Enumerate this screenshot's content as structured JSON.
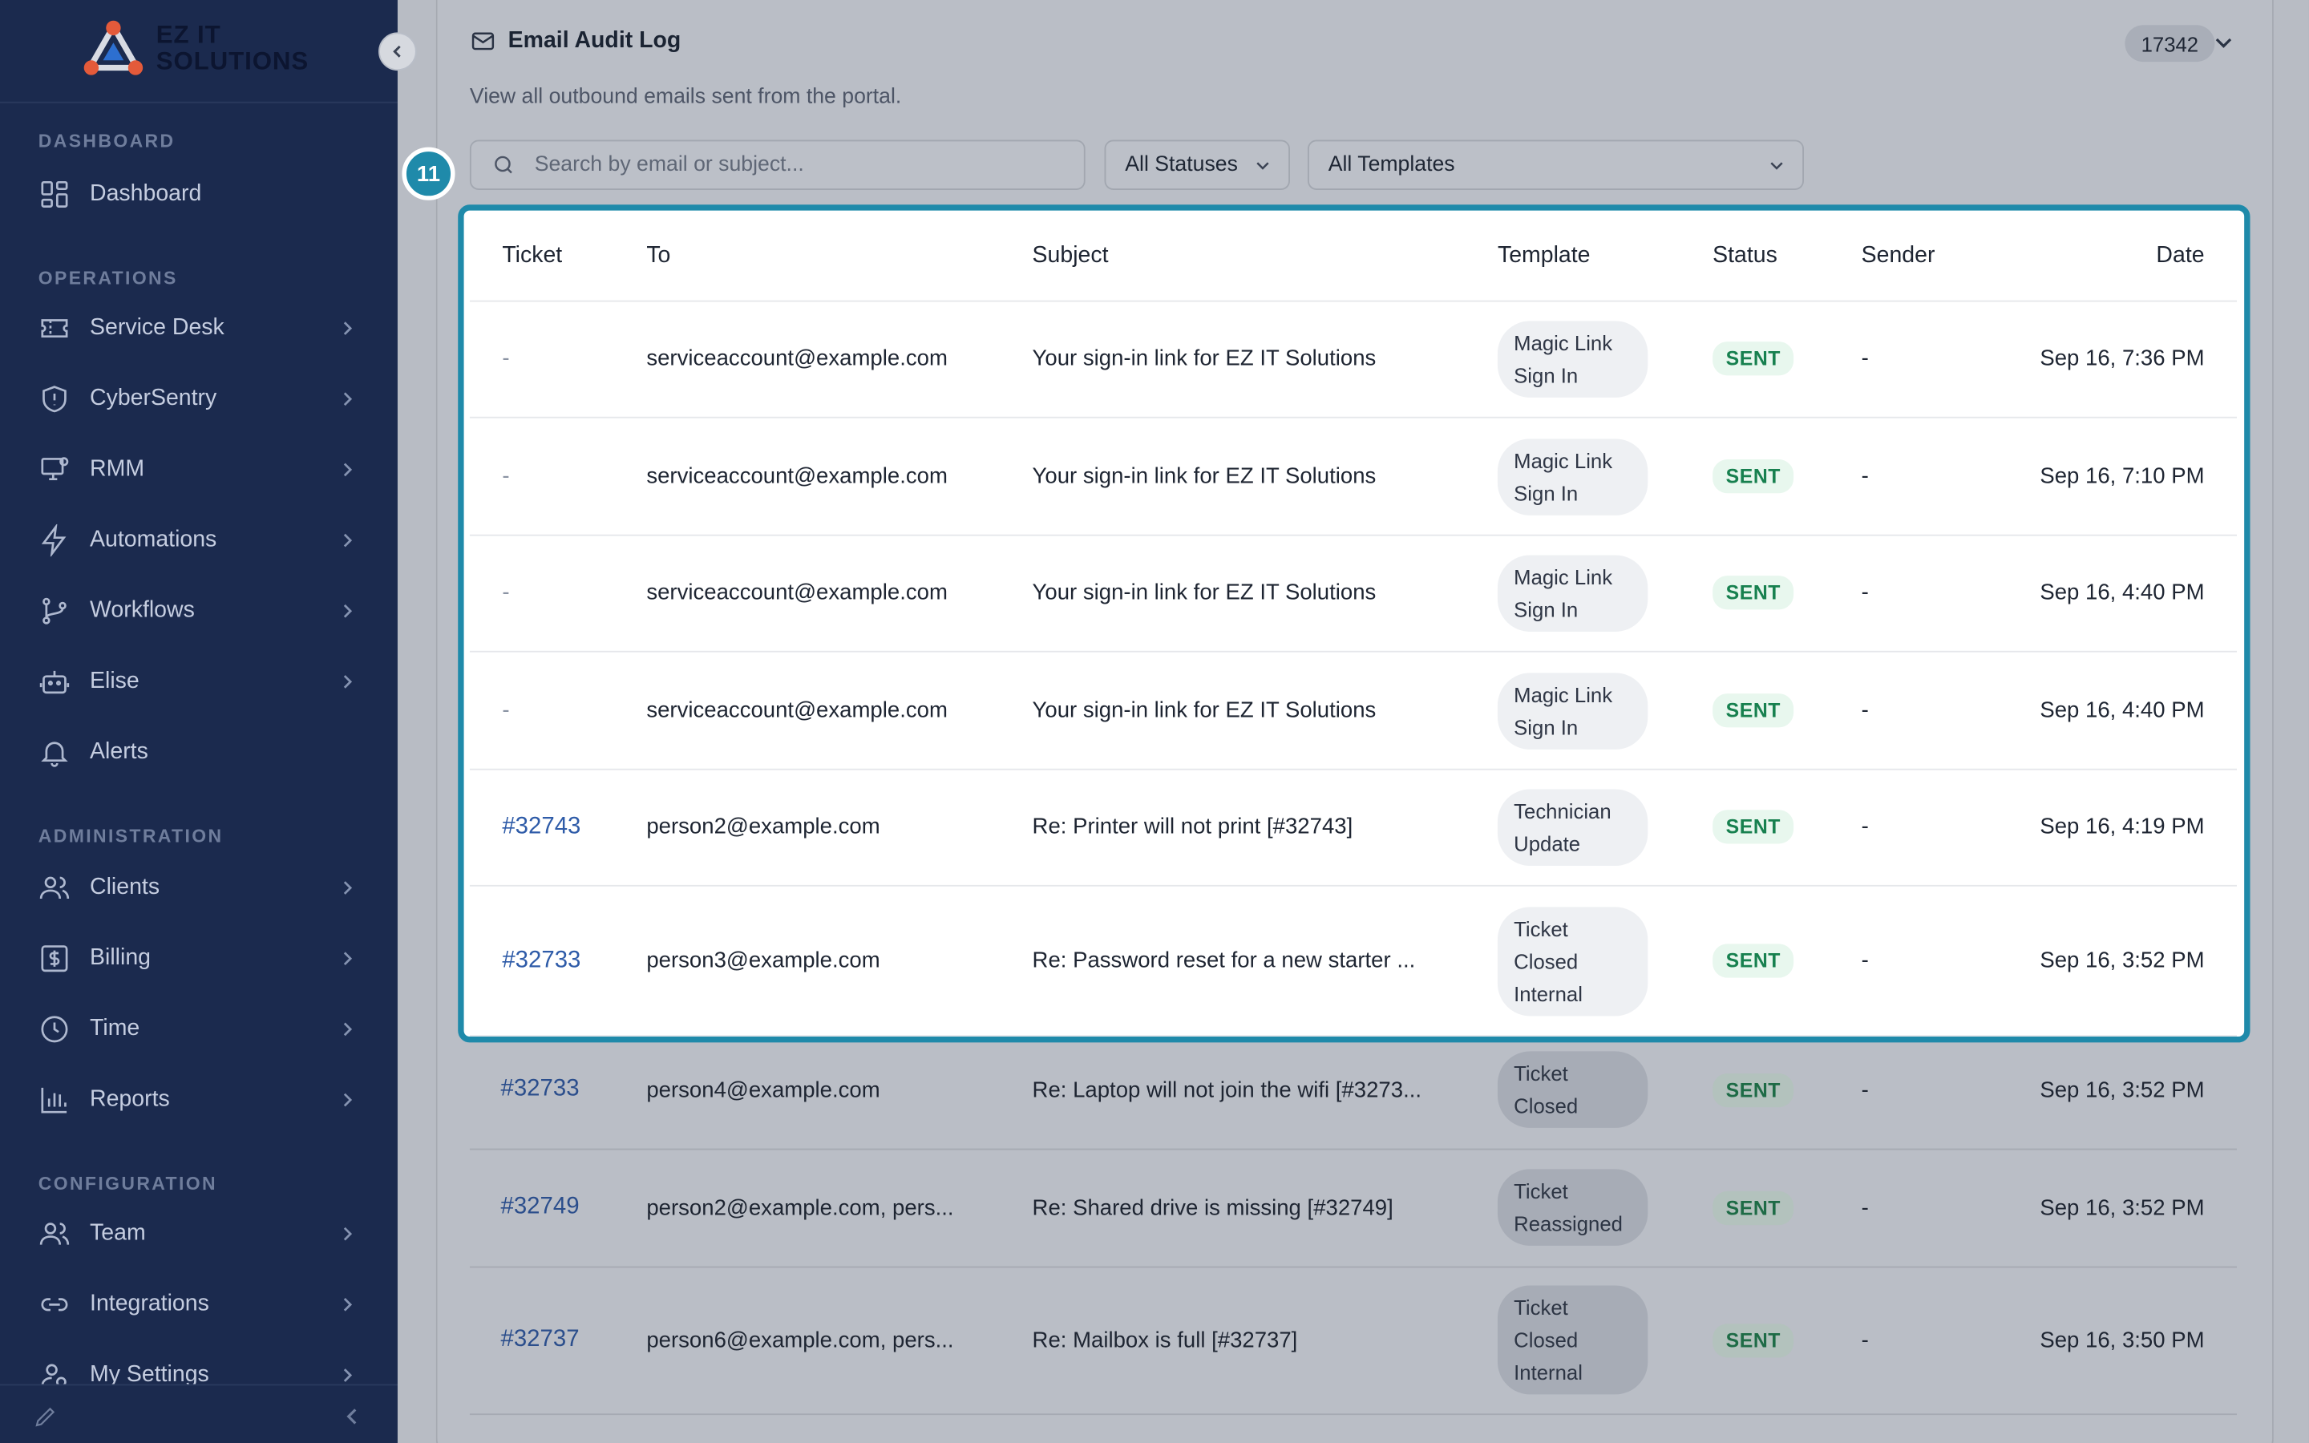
{
  "brand": {
    "line1": "EZ IT",
    "line2": "SOLUTIONS"
  },
  "sidebar": {
    "sections": [
      {
        "label": "DASHBOARD"
      },
      {
        "label": "OPERATIONS"
      },
      {
        "label": "ADMINISTRATION"
      },
      {
        "label": "CONFIGURATION"
      }
    ],
    "items": [
      {
        "label": "Dashboard",
        "icon": "grid-icon"
      },
      {
        "label": "Service Desk",
        "icon": "ticket-icon"
      },
      {
        "label": "CyberSentry",
        "icon": "shield-icon"
      },
      {
        "label": "RMM",
        "icon": "monitor-icon"
      },
      {
        "label": "Automations",
        "icon": "bolt-icon"
      },
      {
        "label": "Workflows",
        "icon": "branch-icon"
      },
      {
        "label": "Elise",
        "icon": "robot-icon"
      },
      {
        "label": "Alerts",
        "icon": "bell-icon"
      },
      {
        "label": "Clients",
        "icon": "users-icon"
      },
      {
        "label": "Billing",
        "icon": "dollar-icon"
      },
      {
        "label": "Time",
        "icon": "clock-icon"
      },
      {
        "label": "Reports",
        "icon": "bar-chart-icon"
      },
      {
        "label": "Team",
        "icon": "team-icon"
      },
      {
        "label": "Integrations",
        "icon": "link-icon"
      },
      {
        "label": "My Settings",
        "icon": "user-gear-icon"
      }
    ]
  },
  "page": {
    "title": "Email Audit Log",
    "subtitle": "View all outbound emails sent from the portal.",
    "count": "17342"
  },
  "filters": {
    "search_placeholder": "Search by email or subject...",
    "status": "All Statuses",
    "template": "All Templates"
  },
  "highlight_badge": "11",
  "table": {
    "columns": [
      "Ticket",
      "To",
      "Subject",
      "Template",
      "Status",
      "Sender",
      "Date"
    ],
    "rows": [
      {
        "ticket": "-",
        "to": "serviceaccount@example.com",
        "subject": "Your sign-in link for EZ IT Solutions",
        "template": "Magic Link Sign In",
        "status": "SENT",
        "sender": "-",
        "date": "Sep 16, 7:36 PM"
      },
      {
        "ticket": "-",
        "to": "serviceaccount@example.com",
        "subject": "Your sign-in link for EZ IT Solutions",
        "template": "Magic Link Sign In",
        "status": "SENT",
        "sender": "-",
        "date": "Sep 16, 7:10 PM"
      },
      {
        "ticket": "-",
        "to": "serviceaccount@example.com",
        "subject": "Your sign-in link for EZ IT Solutions",
        "template": "Magic Link Sign In",
        "status": "SENT",
        "sender": "-",
        "date": "Sep 16, 4:40 PM"
      },
      {
        "ticket": "-",
        "to": "serviceaccount@example.com",
        "subject": "Your sign-in link for EZ IT Solutions",
        "template": "Magic Link Sign In",
        "status": "SENT",
        "sender": "-",
        "date": "Sep 16, 4:40 PM"
      },
      {
        "ticket": "#32743",
        "to": "person2@example.com",
        "subject": "Re: Printer will not print [#32743]",
        "template": "Technician Update",
        "status": "SENT",
        "sender": "-",
        "date": "Sep 16, 4:19 PM"
      },
      {
        "ticket": "#32733",
        "to": "person3@example.com",
        "subject": "Re: Password reset for a new starter ...",
        "template": "Ticket Closed Internal",
        "status": "SENT",
        "sender": "-",
        "date": "Sep 16, 3:52 PM"
      },
      {
        "ticket": "#32733",
        "to": "person4@example.com",
        "subject": "Re: Laptop will not join the wifi [#3273...",
        "template": "Ticket Closed",
        "status": "SENT",
        "sender": "-",
        "date": "Sep 16, 3:52 PM"
      },
      {
        "ticket": "#32749",
        "to": "person2@example.com, pers...",
        "subject": "Re: Shared drive is missing [#32749]",
        "template": "Ticket Reassigned",
        "status": "SENT",
        "sender": "-",
        "date": "Sep 16, 3:52 PM"
      },
      {
        "ticket": "#32737",
        "to": "person6@example.com, pers...",
        "subject": "Re: Mailbox is full [#32737]",
        "template": "Ticket Closed Internal",
        "status": "SENT",
        "sender": "-",
        "date": "Sep 16, 3:50 PM"
      }
    ]
  }
}
